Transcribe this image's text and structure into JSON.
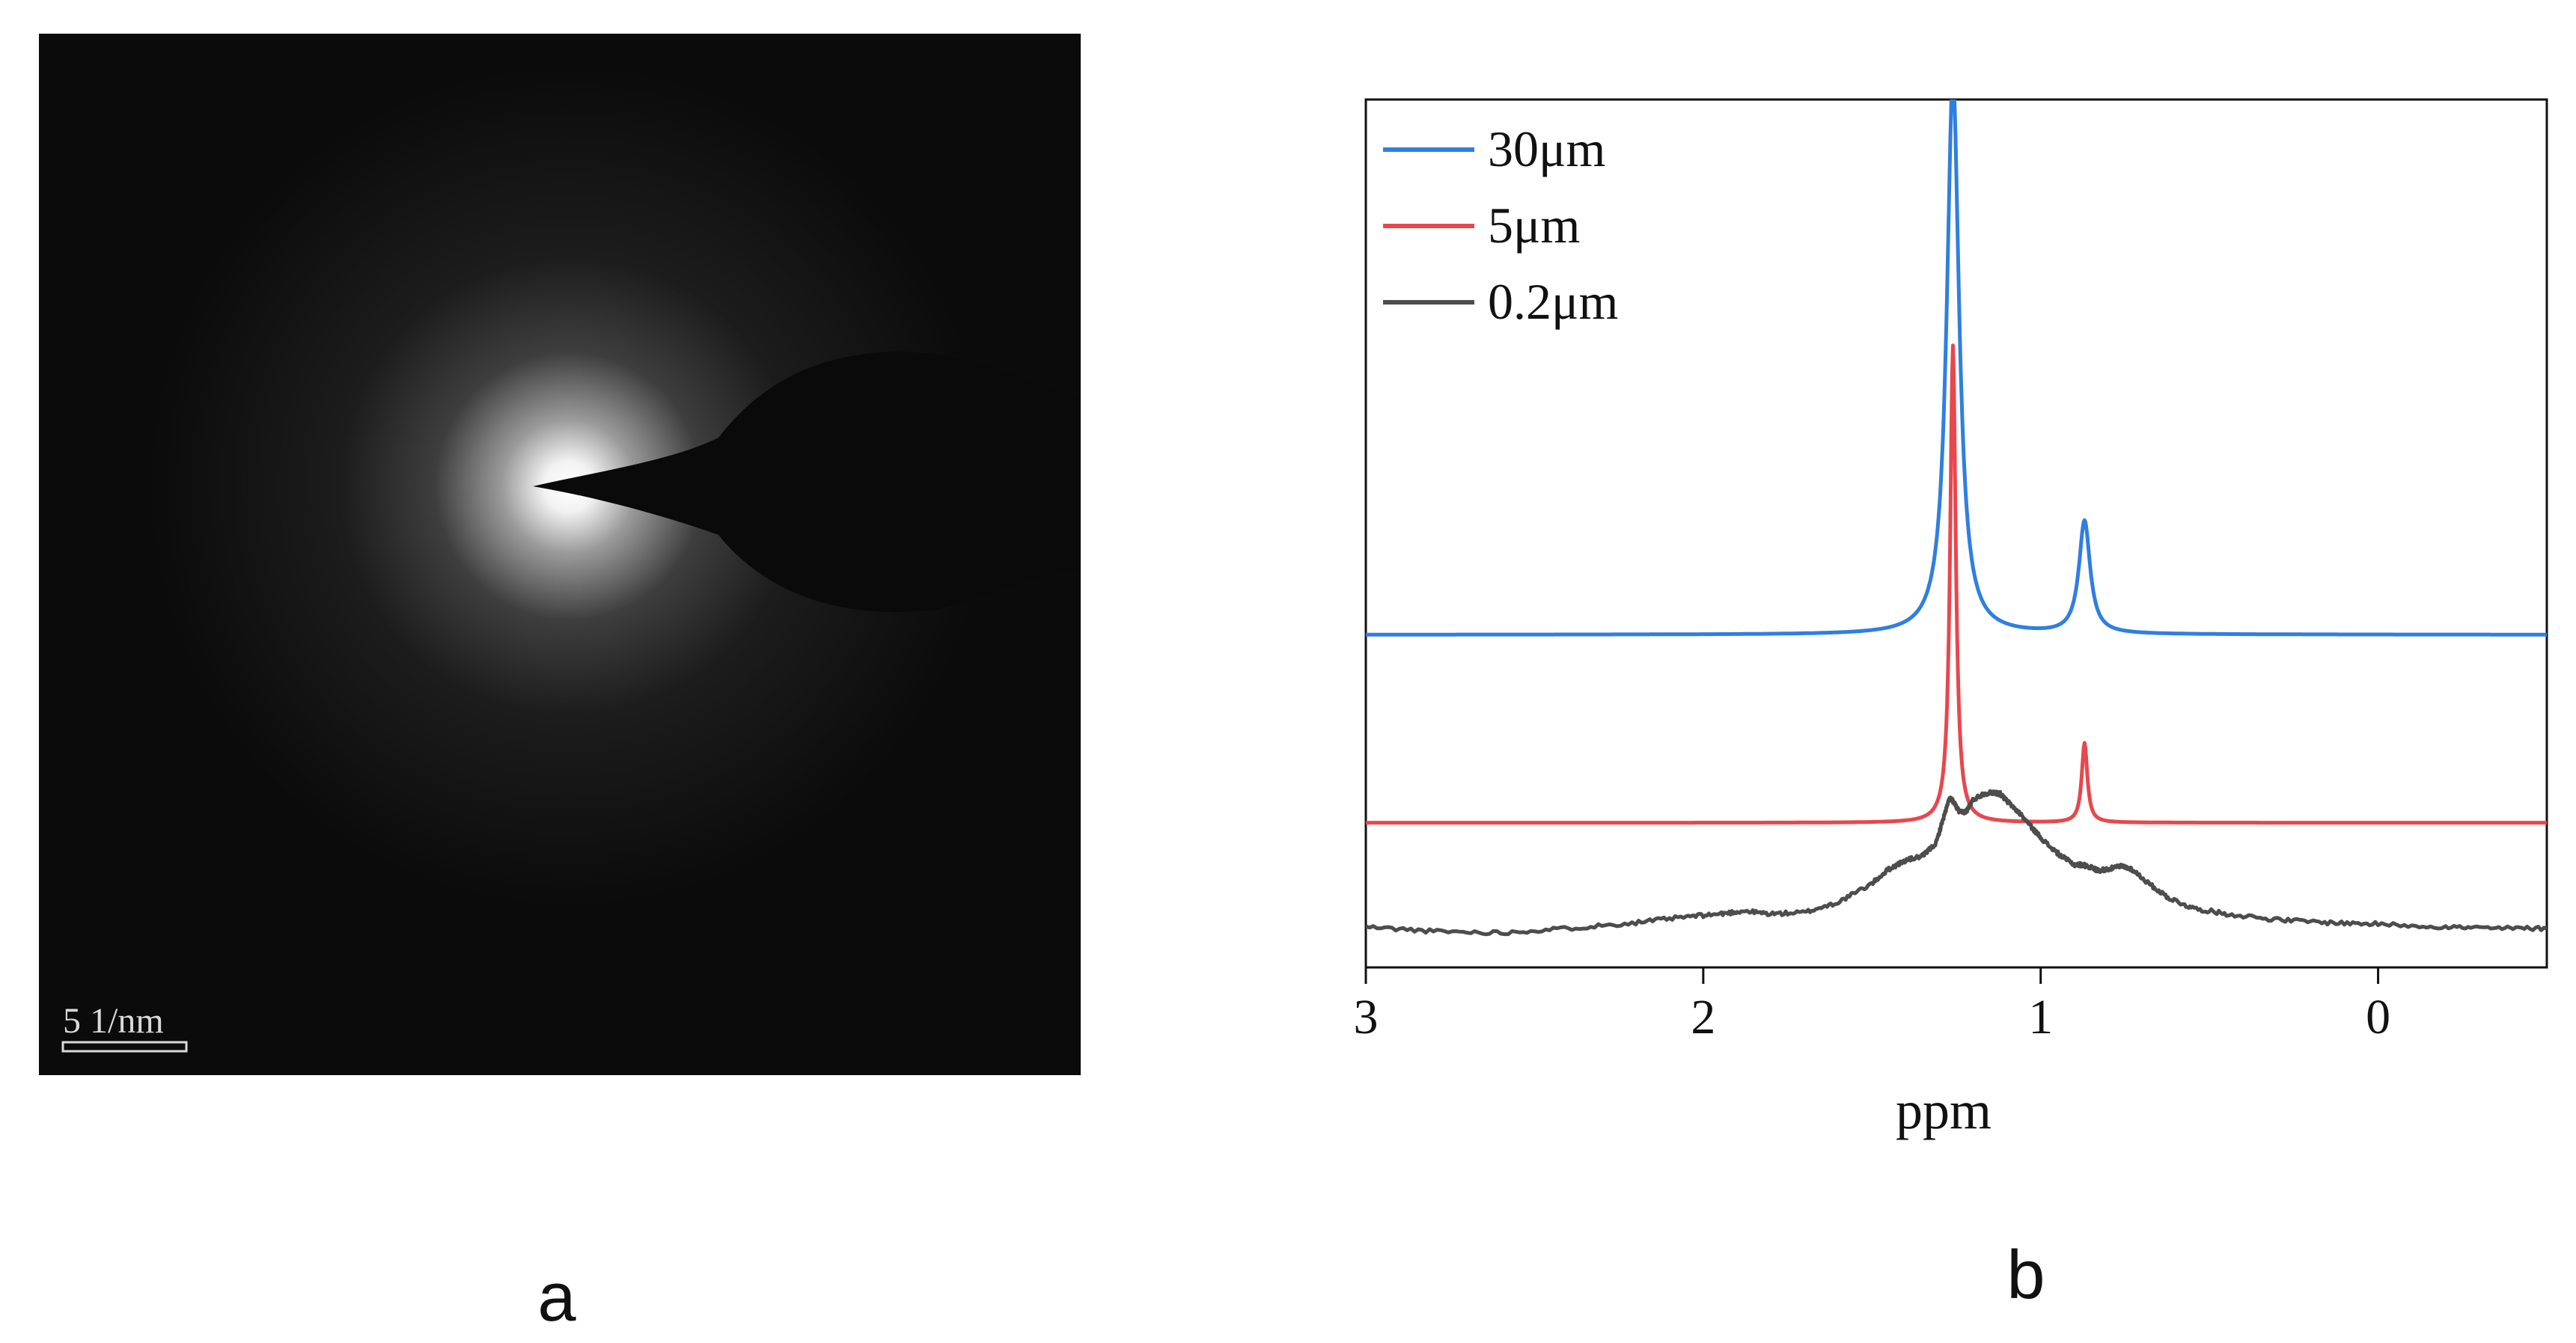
{
  "panels": {
    "a": {
      "label": "a",
      "scale_bar_text": "5 1/nm"
    },
    "b": {
      "label": "b"
    }
  },
  "chart_data": {
    "type": "line",
    "title": "",
    "xlabel": "ppm",
    "ylabel": "",
    "xlim": [
      3,
      -0.5
    ],
    "x_reversed": true,
    "xticks": [
      3,
      2,
      1,
      0
    ],
    "y_ticks_shown": false,
    "grid": false,
    "legend_position": "top-left",
    "series": [
      {
        "name": "30μm",
        "color": "#2f7fe0",
        "baseline": 2.3,
        "peaks": [
          {
            "x": 1.26,
            "height": 3.85,
            "width": 0.022
          },
          {
            "x": 0.87,
            "height": 0.78,
            "width": 0.02
          }
        ]
      },
      {
        "name": "5μm",
        "color": "#e8474d",
        "baseline": 1.0,
        "peaks": [
          {
            "x": 1.26,
            "height": 3.3,
            "width": 0.01
          },
          {
            "x": 0.87,
            "height": 0.55,
            "width": 0.01
          }
        ]
      },
      {
        "name": "0.2μm",
        "color": "#4d4d4d",
        "points": [
          [
            3.0,
            0.28
          ],
          [
            2.8,
            0.25
          ],
          [
            2.6,
            0.24
          ],
          [
            2.4,
            0.27
          ],
          [
            2.2,
            0.31
          ],
          [
            2.05,
            0.35
          ],
          [
            1.95,
            0.37
          ],
          [
            1.88,
            0.39
          ],
          [
            1.8,
            0.37
          ],
          [
            1.7,
            0.38
          ],
          [
            1.6,
            0.45
          ],
          [
            1.5,
            0.58
          ],
          [
            1.45,
            0.68
          ],
          [
            1.4,
            0.74
          ],
          [
            1.35,
            0.77
          ],
          [
            1.31,
            0.86
          ],
          [
            1.29,
            1.02
          ],
          [
            1.27,
            1.17
          ],
          [
            1.26,
            1.15
          ],
          [
            1.24,
            1.07
          ],
          [
            1.22,
            1.08
          ],
          [
            1.2,
            1.16
          ],
          [
            1.17,
            1.2
          ],
          [
            1.14,
            1.21
          ],
          [
            1.12,
            1.2
          ],
          [
            1.1,
            1.15
          ],
          [
            1.06,
            1.06
          ],
          [
            1.02,
            0.95
          ],
          [
            0.98,
            0.85
          ],
          [
            0.94,
            0.77
          ],
          [
            0.9,
            0.71
          ],
          [
            0.88,
            0.71
          ],
          [
            0.86,
            0.7
          ],
          [
            0.83,
            0.67
          ],
          [
            0.8,
            0.68
          ],
          [
            0.76,
            0.7
          ],
          [
            0.73,
            0.68
          ],
          [
            0.68,
            0.58
          ],
          [
            0.62,
            0.48
          ],
          [
            0.55,
            0.41
          ],
          [
            0.45,
            0.37
          ],
          [
            0.3,
            0.33
          ],
          [
            0.15,
            0.31
          ],
          [
            0.0,
            0.3
          ],
          [
            -0.2,
            0.28
          ],
          [
            -0.35,
            0.27
          ],
          [
            -0.5,
            0.27
          ]
        ]
      }
    ]
  }
}
